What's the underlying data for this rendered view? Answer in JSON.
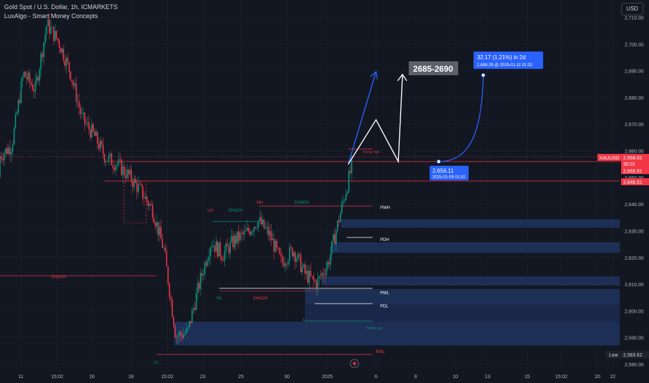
{
  "header": {
    "instrument": "Gold Spot / U.S. Dollar, 1h, ICMARKETS",
    "indicator": "LuxAlgo - Smart Money Concepts",
    "currency": "USD"
  },
  "colors": {
    "background": "#131722",
    "up": "#089981",
    "down": "#f23645",
    "blue": "#2962ff",
    "zone": "#1e2f55",
    "line_red": "#f23645",
    "text": "#d1d4dc"
  },
  "annotations": {
    "target_box": "2685-2690",
    "measure_main": "32.17 (1.21%) in 2d",
    "measure_sub": "2,688.29 @ 2025-01-11  01:02",
    "start_price": "2,656.11",
    "start_time": "2025-01-09 01:02"
  },
  "price_tags": {
    "symbol": "XAUUSD",
    "last": "2,658.02",
    "countdown": "35:01",
    "level1": "2,655.91",
    "level2": "2,648.51",
    "low_label": "Low",
    "low_value": "2,583.62"
  },
  "chart_data": {
    "type": "candlestick",
    "y_axis": {
      "range": [
        2577,
        2716
      ],
      "ticks": [
        "2,710.00",
        "2,700.00",
        "2,690.00",
        "2,680.00",
        "2,670.00",
        "2,660.00",
        "2,650.00",
        "2,640.00",
        "2,630.00",
        "2,620.00",
        "2,610.00",
        "2,600.00",
        "2,590.00",
        "2,580.00"
      ]
    },
    "x_axis": {
      "ticks": [
        "11",
        "15:02",
        "16",
        "18",
        "15:02",
        "23",
        "25",
        "30",
        "2025",
        "6",
        "8",
        "10",
        "13",
        "15",
        "15:02",
        "20",
        "22"
      ]
    },
    "ohlc_path": [
      [
        2650,
        2666
      ],
      [
        2664,
        2660
      ],
      [
        2678,
        2700
      ],
      [
        2690,
        2676
      ],
      [
        2703,
        2712
      ],
      [
        2708,
        2694
      ],
      [
        2697,
        2682
      ],
      [
        2682,
        2662
      ],
      [
        2672,
        2660
      ],
      [
        2652,
        2663
      ],
      [
        2664,
        2646
      ],
      [
        2655,
        2646
      ],
      [
        2650,
        2640
      ],
      [
        2636,
        2640
      ],
      [
        2644,
        2601
      ],
      [
        2596,
        2585
      ],
      [
        2588,
        2596
      ],
      [
        2600,
        2620
      ],
      [
        2618,
        2634
      ],
      [
        2632,
        2610
      ],
      [
        2618,
        2635
      ],
      [
        2636,
        2622
      ],
      [
        2628,
        2640
      ],
      [
        2637,
        2620
      ],
      [
        2622,
        2614
      ],
      [
        2618,
        2628
      ],
      [
        2624,
        2604
      ],
      [
        2606,
        2614
      ],
      [
        2612,
        2624
      ],
      [
        2626,
        2646
      ],
      [
        2650,
        2658
      ]
    ],
    "labels": [
      {
        "text": "CHoCH",
        "price": 2613,
        "color": "red"
      },
      {
        "text": "LH",
        "price": 2638,
        "color": "red"
      },
      {
        "text": "CHoCH",
        "price": 2638,
        "color": "green"
      },
      {
        "text": "HH",
        "price": 2641,
        "color": "red"
      },
      {
        "text": "CHoCH",
        "price": 2641,
        "color": "green"
      },
      {
        "text": "HL",
        "price": 2605,
        "color": "green"
      },
      {
        "text": "CHoCH",
        "price": 2605,
        "color": "red"
      },
      {
        "text": "LL",
        "price": 2597,
        "color": "green"
      },
      {
        "text": "LL",
        "price": 2581,
        "color": "green"
      },
      {
        "text": "PWH",
        "price": 2639,
        "color": "white"
      },
      {
        "text": "PDH",
        "price": 2627,
        "color": "white"
      },
      {
        "text": "PWL",
        "price": 2607,
        "color": "white"
      },
      {
        "text": "PDL",
        "price": 2602,
        "color": "white"
      },
      {
        "text": "PWL",
        "price": 2585,
        "color": "red"
      },
      {
        "text": "Strong High",
        "price": 2660,
        "color": "red"
      },
      {
        "text": "Trailing Low",
        "price": 2594,
        "color": "green"
      }
    ]
  }
}
